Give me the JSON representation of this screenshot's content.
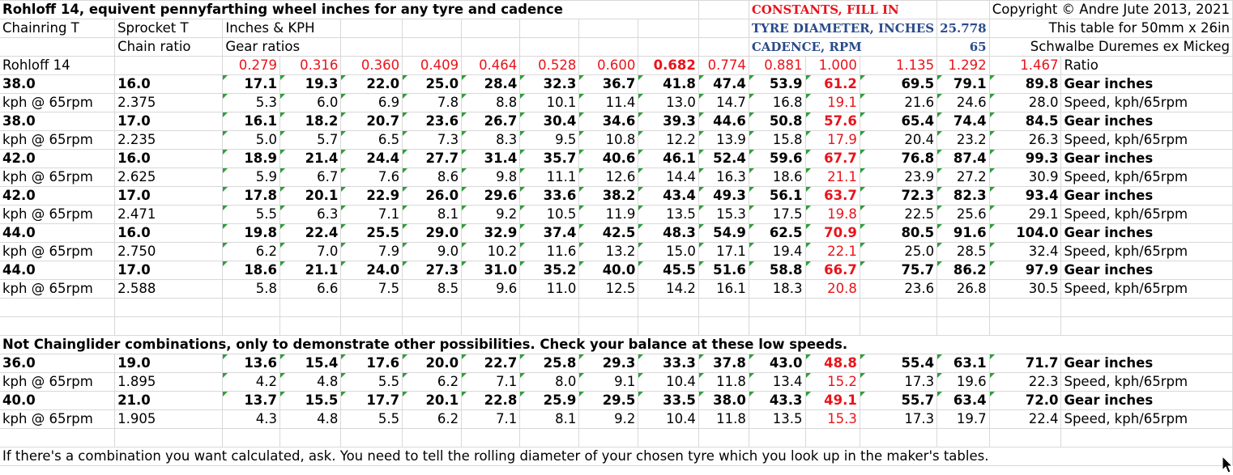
{
  "header": {
    "row1": {
      "title": "Rohloff 14, equivent pennyfarthing wheel inches  for any tyre and cadence",
      "constants_label": "CONSTANTS, FILL IN",
      "copyright": "Copyright © Andre Jute 2013, 2021"
    },
    "row2": {
      "chainring": "Chainring T",
      "sprocket": "Sprocket T",
      "inches_kph": "Inches & KPH",
      "tyre_label": "TYRE DIAMETER, INCHES",
      "tyre_value": "25.778",
      "table_for": "This table for  50mm x 26in"
    },
    "row3": {
      "chain_ratio": "Chain ratio",
      "gear_ratios": "Gear ratios",
      "cadence_label": "CADENCE, RPM",
      "cadence_value": "65",
      "tyre_name": "Schwalbe Duremes ex Mickeg"
    }
  },
  "ratios_row": {
    "label": "Rohloff 14",
    "values": [
      "0.279",
      "0.316",
      "0.360",
      "0.409",
      "0.464",
      "0.528",
      "0.600",
      "0.682",
      "0.774",
      "0.881",
      "1.000",
      "1.135",
      "1.292",
      "1.467"
    ],
    "suffix": "Ratio"
  },
  "combos": [
    {
      "chainring": "38.0",
      "sprocket": "16.0",
      "gear": [
        "17.1",
        "19.3",
        "22.0",
        "25.0",
        "28.4",
        "32.3",
        "36.7",
        "41.8",
        "47.4",
        "53.9",
        "61.2",
        "69.5",
        "79.1",
        "89.8"
      ],
      "kph_label": "kph @ 65rpm",
      "chain_ratio": "2.375",
      "speed": [
        "5.3",
        "6.0",
        "6.9",
        "7.8",
        "8.8",
        "10.1",
        "11.4",
        "13.0",
        "14.7",
        "16.8",
        "19.1",
        "21.6",
        "24.6",
        "28.0"
      ]
    },
    {
      "chainring": "38.0",
      "sprocket": "17.0",
      "gear": [
        "16.1",
        "18.2",
        "20.7",
        "23.6",
        "26.7",
        "30.4",
        "34.6",
        "39.3",
        "44.6",
        "50.8",
        "57.6",
        "65.4",
        "74.4",
        "84.5"
      ],
      "kph_label": "kph @ 65rpm",
      "chain_ratio": "2.235",
      "speed": [
        "5.0",
        "5.7",
        "6.5",
        "7.3",
        "8.3",
        "9.5",
        "10.8",
        "12.2",
        "13.9",
        "15.8",
        "17.9",
        "20.4",
        "23.2",
        "26.3"
      ]
    },
    {
      "chainring": "42.0",
      "sprocket": "16.0",
      "gear": [
        "18.9",
        "21.4",
        "24.4",
        "27.7",
        "31.4",
        "35.7",
        "40.6",
        "46.1",
        "52.4",
        "59.6",
        "67.7",
        "76.8",
        "87.4",
        "99.3"
      ],
      "kph_label": "kph @ 65rpm",
      "chain_ratio": "2.625",
      "speed": [
        "5.9",
        "6.7",
        "7.6",
        "8.6",
        "9.8",
        "11.1",
        "12.6",
        "14.4",
        "16.3",
        "18.6",
        "21.1",
        "23.9",
        "27.2",
        "30.9"
      ]
    },
    {
      "chainring": "42.0",
      "sprocket": "17.0",
      "gear": [
        "17.8",
        "20.1",
        "22.9",
        "26.0",
        "29.6",
        "33.6",
        "38.2",
        "43.4",
        "49.3",
        "56.1",
        "63.7",
        "72.3",
        "82.3",
        "93.4"
      ],
      "kph_label": "kph @ 65rpm",
      "chain_ratio": "2.471",
      "speed": [
        "5.5",
        "6.3",
        "7.1",
        "8.1",
        "9.2",
        "10.5",
        "11.9",
        "13.5",
        "15.3",
        "17.5",
        "19.8",
        "22.5",
        "25.6",
        "29.1"
      ]
    },
    {
      "chainring": "44.0",
      "sprocket": "16.0",
      "gear": [
        "19.8",
        "22.4",
        "25.5",
        "29.0",
        "32.9",
        "37.4",
        "42.5",
        "48.3",
        "54.9",
        "62.5",
        "70.9",
        "80.5",
        "91.6",
        "104.0"
      ],
      "kph_label": "kph @ 65rpm",
      "chain_ratio": "2.750",
      "speed": [
        "6.2",
        "7.0",
        "7.9",
        "9.0",
        "10.2",
        "11.6",
        "13.2",
        "15.0",
        "17.1",
        "19.4",
        "22.1",
        "25.0",
        "28.5",
        "32.4"
      ]
    },
    {
      "chainring": "44.0",
      "sprocket": "17.0",
      "gear": [
        "18.6",
        "21.1",
        "24.0",
        "27.3",
        "31.0",
        "35.2",
        "40.0",
        "45.5",
        "51.6",
        "58.8",
        "66.7",
        "75.7",
        "86.2",
        "97.9"
      ],
      "kph_label": "kph @ 65rpm",
      "chain_ratio": "2.588",
      "speed": [
        "5.8",
        "6.6",
        "7.5",
        "8.5",
        "9.6",
        "11.0",
        "12.5",
        "14.2",
        "16.1",
        "18.3",
        "20.8",
        "23.6",
        "26.8",
        "30.5"
      ]
    }
  ],
  "labels": {
    "gear_inches": "Gear inches",
    "speed_kph": "Speed, kph/65rpm"
  },
  "note_other": "Not Chainglider combinations, only to demonstrate other possibilities. Check your balance at these low speeds.",
  "other_combos": [
    {
      "chainring": "36.0",
      "sprocket": "19.0",
      "gear": [
        "13.6",
        "15.4",
        "17.6",
        "20.0",
        "22.7",
        "25.8",
        "29.3",
        "33.3",
        "37.8",
        "43.0",
        "48.8",
        "55.4",
        "63.1",
        "71.7"
      ],
      "kph_label": "kph @ 65rpm",
      "chain_ratio": "1.895",
      "speed": [
        "4.2",
        "4.8",
        "5.5",
        "6.2",
        "7.1",
        "8.0",
        "9.1",
        "10.4",
        "11.8",
        "13.4",
        "15.2",
        "17.3",
        "19.6",
        "22.3"
      ]
    },
    {
      "chainring": "40.0",
      "sprocket": "21.0",
      "gear": [
        "13.7",
        "15.5",
        "17.7",
        "20.1",
        "22.8",
        "25.9",
        "29.5",
        "33.5",
        "38.0",
        "43.3",
        "49.1",
        "55.7",
        "63.4",
        "72.0"
      ],
      "kph_label": "kph @ 65rpm",
      "chain_ratio": "1.905",
      "speed": [
        "4.3",
        "4.8",
        "5.5",
        "6.2",
        "7.1",
        "8.1",
        "9.2",
        "10.4",
        "11.8",
        "13.5",
        "15.3",
        "17.3",
        "19.7",
        "22.4"
      ]
    }
  ],
  "footer_note": "If there's a combination you want calculated, ask. You need to tell the rolling diameter of your chosen tyre which you look up in the maker's tables.",
  "colors": {
    "highlight_red": "#e8141b",
    "constants_blue": "#2a4a8a",
    "error_triangle_green": "#2f9e3a"
  },
  "icons": {
    "cursor": "mouse-pointer-icon"
  }
}
